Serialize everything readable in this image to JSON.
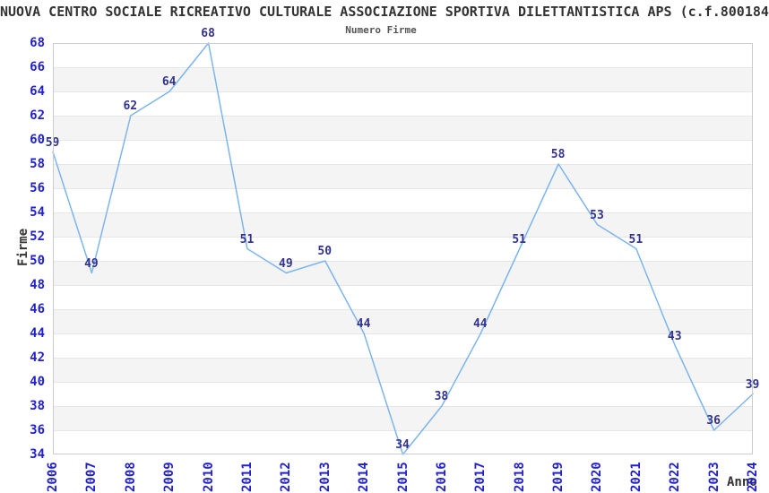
{
  "chart_data": {
    "type": "line",
    "title": "NUOVA CENTRO SOCIALE RICREATIVO CULTURALE ASSOCIAZIONE SPORTIVA DILETTANTISTICA APS (c.f.800184",
    "subtitle": "Numero Firme",
    "xlabel": "Anno",
    "ylabel": "Firme",
    "x": [
      2006,
      2007,
      2008,
      2009,
      2010,
      2011,
      2012,
      2013,
      2014,
      2015,
      2016,
      2017,
      2018,
      2019,
      2020,
      2021,
      2022,
      2023,
      2024
    ],
    "values": [
      59,
      49,
      62,
      64,
      68,
      51,
      49,
      50,
      44,
      34,
      38,
      44,
      51,
      58,
      53,
      51,
      43,
      36,
      39
    ],
    "ylim": [
      34,
      68
    ],
    "ytick_step": 2,
    "yticks": [
      34,
      36,
      38,
      40,
      42,
      44,
      46,
      48,
      50,
      52,
      54,
      56,
      58,
      60,
      62,
      64,
      66,
      68
    ],
    "grid": "horizontal-bands",
    "legend_position": "none",
    "colors": {
      "line": "#7cb5ec",
      "band": "#f4f4f4",
      "gridline": "#e6e6e6",
      "plot_border": "#cccccc",
      "tick_label": "#2222cc",
      "data_label": "#33338f",
      "title": "#333333",
      "subtitle": "#555555",
      "axis_title": "#333333",
      "background": "#ffffff"
    }
  }
}
